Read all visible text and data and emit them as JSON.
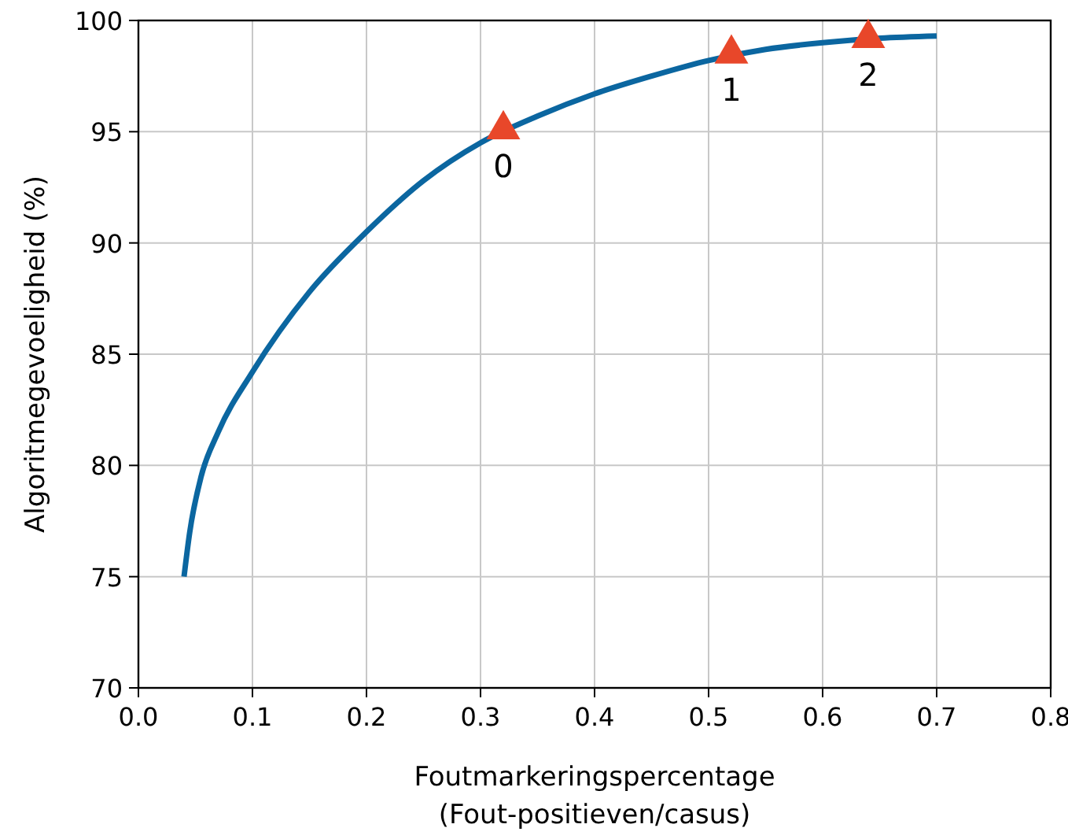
{
  "chart_data": {
    "type": "line",
    "xlabel": "Foutmarkeringspercentage\n(Fout-positieven/casus)",
    "ylabel": "Algoritmegevoeligheid (%)",
    "xlim": [
      0,
      0.8
    ],
    "ylim": [
      70,
      100
    ],
    "xticks": [
      {
        "value": 0,
        "label": "0.0"
      },
      0.1,
      0.2,
      0.3,
      0.4,
      0.5,
      0.6,
      0.7,
      0.8
    ],
    "yticks": [
      70,
      75,
      80,
      85,
      90,
      95,
      100
    ],
    "grid": true,
    "series": [
      {
        "color": "#0b66a0",
        "line_style": "solid",
        "marker": "none",
        "x": [
          0.04,
          0.045,
          0.055,
          0.07,
          0.1,
          0.15,
          0.2,
          0.25,
          0.3,
          0.35,
          0.4,
          0.45,
          0.5,
          0.55,
          0.6,
          0.65,
          0.7
        ],
        "values": [
          75,
          77,
          79.5,
          81.5,
          84.2,
          87.8,
          90.5,
          92.8,
          94.5,
          95.7,
          96.7,
          97.5,
          98.2,
          98.7,
          99.0,
          99.2,
          99.3
        ]
      },
      {
        "type": "scatter",
        "color": "#e8472a",
        "marker": "triangle",
        "x": [
          0.32,
          0.52,
          0.64
        ],
        "values": [
          95.1,
          98.5,
          99.2
        ]
      }
    ],
    "annotations": [
      {
        "text": "0",
        "x": 0.32,
        "y": 95.1
      },
      {
        "text": "1",
        "x": 0.52,
        "y": 98.5
      },
      {
        "text": "2",
        "x": 0.64,
        "y": 99.2
      }
    ]
  }
}
